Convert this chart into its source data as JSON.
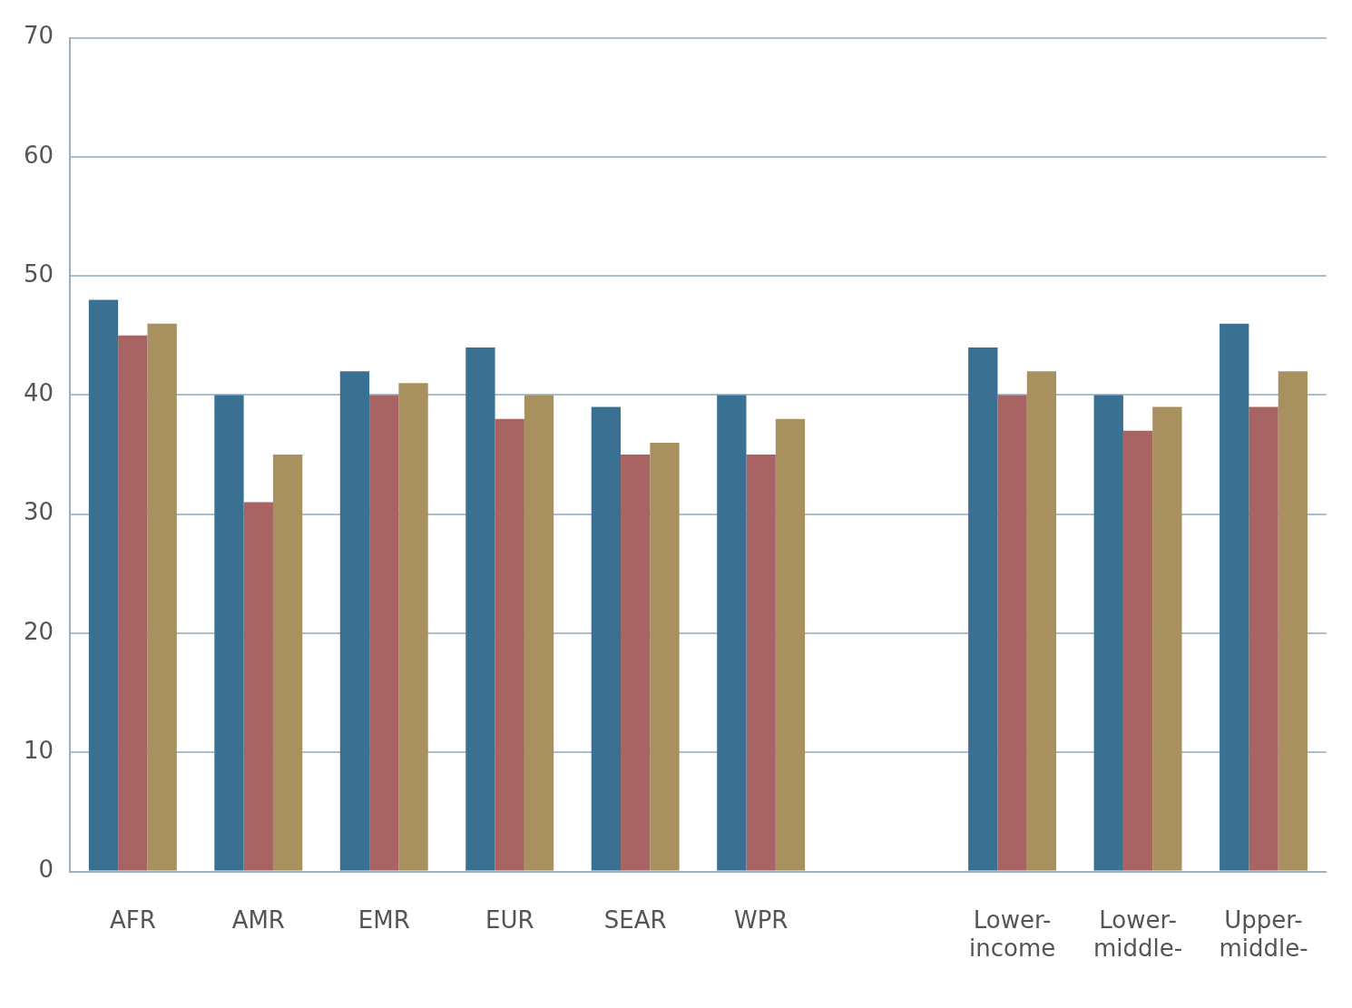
{
  "chart_data": {
    "type": "bar",
    "categories": [
      "AFR",
      "AMR",
      "EMR",
      "EUR",
      "SEAR",
      "WPR",
      null,
      "Lower-income",
      "Lower-middle-",
      "Upper-middle-"
    ],
    "series": [
      {
        "color": "#3a7092",
        "values": [
          48,
          40,
          42,
          44,
          39,
          40,
          null,
          44,
          40,
          46
        ]
      },
      {
        "color": "#a86363",
        "values": [
          45,
          31,
          40,
          38,
          35,
          35,
          null,
          40,
          37,
          39
        ]
      },
      {
        "color": "#a8905f",
        "values": [
          46,
          35,
          41,
          40,
          36,
          38,
          null,
          42,
          39,
          42
        ]
      }
    ],
    "ylim": [
      0,
      70
    ],
    "yticks": [
      0,
      10,
      20,
      30,
      40,
      50,
      60,
      70
    ],
    "grid": "y",
    "legend": false
  }
}
